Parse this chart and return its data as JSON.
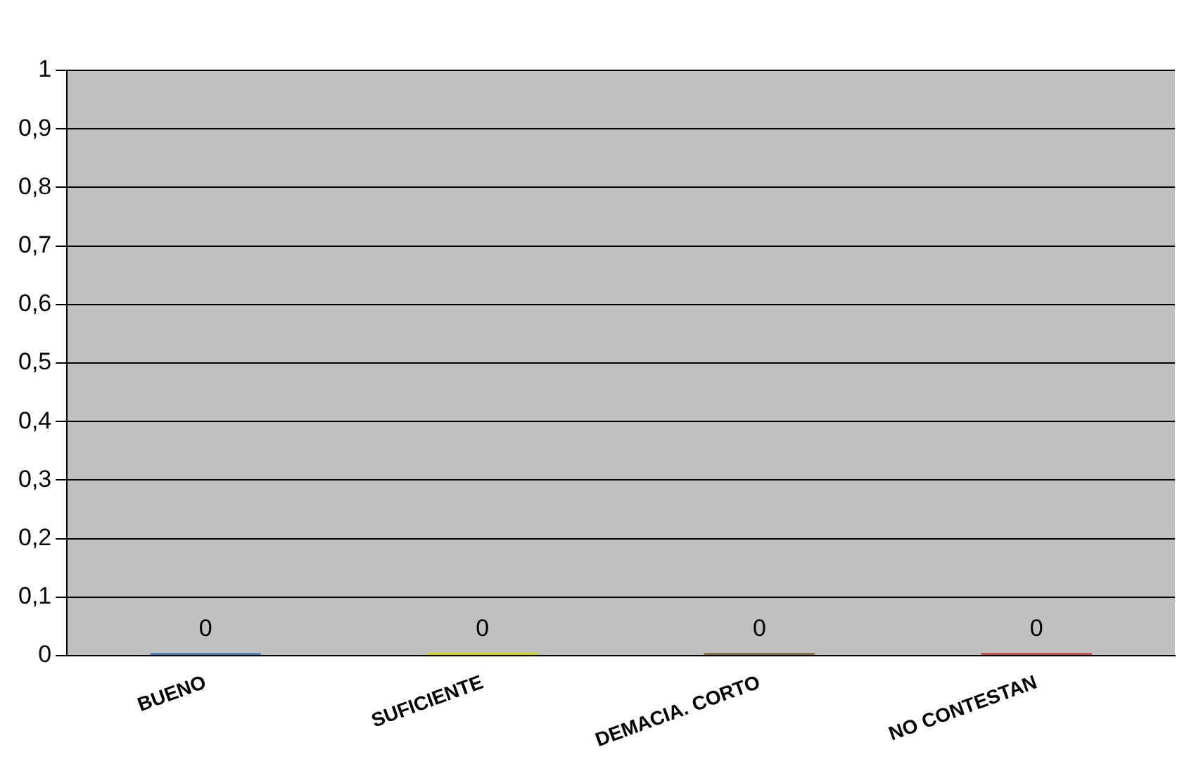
{
  "chart_data": {
    "type": "bar",
    "categories": [
      "BUENO",
      "SUFICIENTE",
      "DEMACIA. CORTO",
      "NO CONTESTAN"
    ],
    "values": [
      0,
      0,
      0,
      0
    ],
    "colors": [
      "#4f81bd",
      "#d4d400",
      "#7f7340",
      "#c0504d"
    ],
    "ylim": [
      0,
      1
    ],
    "yticks": [
      0,
      {
        "value": 0.1,
        "label": "0,1"
      },
      {
        "value": 0.2,
        "label": "0,2"
      },
      {
        "value": 0.3,
        "label": "0,3"
      },
      {
        "value": 0.4,
        "label": "0,4"
      },
      {
        "value": 0.5,
        "label": "0,5"
      },
      {
        "value": 0.6,
        "label": "0,6"
      },
      {
        "value": 0.7,
        "label": "0,7"
      },
      {
        "value": 0.8,
        "label": "0,8"
      },
      {
        "value": 0.9,
        "label": "0,9"
      },
      1
    ],
    "grid": "y",
    "data_labels": true,
    "legend": false
  }
}
